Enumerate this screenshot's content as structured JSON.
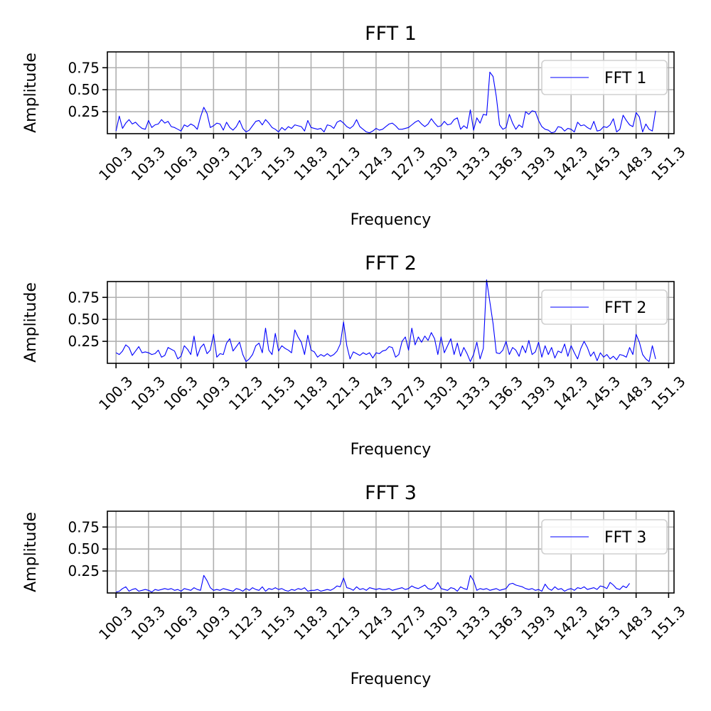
{
  "chart_data": [
    {
      "type": "line",
      "title": "FFT 1",
      "xlabel": "Frequency",
      "ylabel": "Amplitude",
      "xlim": [
        99.5,
        151.8
      ],
      "ylim": [
        0.0,
        0.93
      ],
      "xticks": [
        "100.3",
        "103.3",
        "106.3",
        "109.3",
        "112.3",
        "115.3",
        "118.3",
        "121.3",
        "124.3",
        "127.3",
        "130.3",
        "133.3",
        "136.3",
        "139.3",
        "142.3",
        "145.3",
        "148.3",
        "151.3"
      ],
      "yticks": [
        "0.25",
        "0.50",
        "0.75"
      ],
      "grid": true,
      "legend_position": "top-right",
      "color": "#0000ff",
      "series": [
        {
          "name": "FFT 1",
          "x_start": 100.3,
          "x_step": 0.3,
          "values": [
            0.03,
            0.2,
            0.06,
            0.12,
            0.16,
            0.11,
            0.13,
            0.09,
            0.06,
            0.05,
            0.15,
            0.07,
            0.1,
            0.11,
            0.16,
            0.12,
            0.14,
            0.08,
            0.07,
            0.05,
            0.03,
            0.1,
            0.08,
            0.11,
            0.09,
            0.05,
            0.19,
            0.3,
            0.23,
            0.07,
            0.09,
            0.12,
            0.11,
            0.04,
            0.13,
            0.07,
            0.04,
            0.08,
            0.15,
            0.06,
            0.02,
            0.04,
            0.09,
            0.14,
            0.15,
            0.1,
            0.16,
            0.12,
            0.07,
            0.05,
            0.02,
            0.07,
            0.04,
            0.08,
            0.06,
            0.1,
            0.09,
            0.08,
            0.03,
            0.15,
            0.07,
            0.06,
            0.05,
            0.06,
            0.02,
            0.1,
            0.09,
            0.06,
            0.13,
            0.15,
            0.12,
            0.08,
            0.06,
            0.09,
            0.16,
            0.08,
            0.05,
            0.02,
            0.01,
            0.03,
            0.06,
            0.04,
            0.05,
            0.08,
            0.11,
            0.12,
            0.09,
            0.05,
            0.05,
            0.06,
            0.07,
            0.1,
            0.13,
            0.15,
            0.11,
            0.08,
            0.11,
            0.17,
            0.12,
            0.08,
            0.09,
            0.14,
            0.1,
            0.11,
            0.16,
            0.18,
            0.05,
            0.09,
            0.06,
            0.27,
            0.04,
            0.18,
            0.12,
            0.22,
            0.21,
            0.7,
            0.65,
            0.42,
            0.1,
            0.05,
            0.07,
            0.22,
            0.12,
            0.05,
            0.1,
            0.07,
            0.25,
            0.22,
            0.26,
            0.25,
            0.15,
            0.08,
            0.05,
            0.04,
            0.01,
            0.02,
            0.08,
            0.07,
            0.03,
            0.06,
            0.05,
            0.02,
            0.13,
            0.09,
            0.1,
            0.07,
            0.05,
            0.14,
            0.03,
            0.04,
            0.08,
            0.07,
            0.1,
            0.17,
            0.02,
            0.05,
            0.21,
            0.15,
            0.1,
            0.08,
            0.24,
            0.19,
            0.02,
            0.11,
            0.05,
            0.03,
            0.26
          ]
        }
      ]
    },
    {
      "type": "line",
      "title": "FFT 2",
      "xlabel": "Frequency",
      "ylabel": "Amplitude",
      "xlim": [
        99.5,
        151.8
      ],
      "ylim": [
        0.0,
        0.93
      ],
      "xticks": [
        "100.3",
        "103.3",
        "106.3",
        "109.3",
        "112.3",
        "115.3",
        "118.3",
        "121.3",
        "124.3",
        "127.3",
        "130.3",
        "133.3",
        "136.3",
        "139.3",
        "142.3",
        "145.3",
        "148.3",
        "151.3"
      ],
      "yticks": [
        "0.25",
        "0.50",
        "0.75"
      ],
      "grid": true,
      "legend_position": "top-right",
      "color": "#0000ff",
      "series": [
        {
          "name": "FFT 2",
          "x_start": 100.3,
          "x_step": 0.3,
          "values": [
            0.12,
            0.1,
            0.14,
            0.21,
            0.18,
            0.09,
            0.14,
            0.19,
            0.12,
            0.13,
            0.12,
            0.1,
            0.11,
            0.15,
            0.07,
            0.09,
            0.18,
            0.16,
            0.14,
            0.05,
            0.08,
            0.2,
            0.16,
            0.1,
            0.31,
            0.08,
            0.18,
            0.22,
            0.11,
            0.15,
            0.33,
            0.07,
            0.11,
            0.1,
            0.23,
            0.28,
            0.14,
            0.19,
            0.24,
            0.1,
            0.02,
            0.05,
            0.1,
            0.2,
            0.23,
            0.12,
            0.4,
            0.15,
            0.1,
            0.34,
            0.14,
            0.2,
            0.17,
            0.15,
            0.12,
            0.38,
            0.3,
            0.24,
            0.1,
            0.32,
            0.15,
            0.13,
            0.07,
            0.1,
            0.08,
            0.11,
            0.08,
            0.1,
            0.14,
            0.22,
            0.47,
            0.2,
            0.05,
            0.13,
            0.11,
            0.09,
            0.12,
            0.1,
            0.12,
            0.06,
            0.12,
            0.11,
            0.14,
            0.15,
            0.19,
            0.18,
            0.07,
            0.1,
            0.25,
            0.3,
            0.15,
            0.4,
            0.21,
            0.3,
            0.24,
            0.31,
            0.26,
            0.35,
            0.28,
            0.1,
            0.3,
            0.12,
            0.2,
            0.28,
            0.1,
            0.23,
            0.08,
            0.18,
            0.11,
            0.02,
            0.1,
            0.24,
            0.05,
            0.17,
            0.95,
            0.7,
            0.45,
            0.12,
            0.11,
            0.15,
            0.25,
            0.1,
            0.18,
            0.15,
            0.08,
            0.2,
            0.12,
            0.26,
            0.1,
            0.13,
            0.24,
            0.07,
            0.2,
            0.1,
            0.18,
            0.06,
            0.14,
            0.12,
            0.22,
            0.08,
            0.2,
            0.12,
            0.05,
            0.17,
            0.25,
            0.18,
            0.08,
            0.13,
            0.03,
            0.12,
            0.07,
            0.1,
            0.05,
            0.08,
            0.04,
            0.1,
            0.09,
            0.07,
            0.18,
            0.1,
            0.33,
            0.24,
            0.1,
            0.05,
            0.02,
            0.2,
            0.05
          ]
        }
      ]
    },
    {
      "type": "line",
      "title": "FFT 3",
      "xlabel": "Frequency",
      "ylabel": "Amplitude",
      "xlim": [
        99.5,
        151.8
      ],
      "ylim": [
        0.0,
        0.93
      ],
      "xticks": [
        "100.3",
        "103.3",
        "106.3",
        "109.3",
        "112.3",
        "115.3",
        "118.3",
        "121.3",
        "124.3",
        "127.3",
        "130.3",
        "133.3",
        "136.3",
        "139.3",
        "142.3",
        "145.3",
        "148.3",
        "151.3"
      ],
      "yticks": [
        "0.25",
        "0.50",
        "0.75"
      ],
      "grid": true,
      "legend_position": "top-right",
      "color": "#0000ff",
      "series": [
        {
          "name": "FFT 3",
          "x_start": 100.3,
          "x_step": 0.3,
          "values": [
            0.01,
            0.02,
            0.05,
            0.07,
            0.02,
            0.04,
            0.05,
            0.02,
            0.03,
            0.04,
            0.03,
            0.01,
            0.04,
            0.03,
            0.04,
            0.05,
            0.04,
            0.05,
            0.03,
            0.04,
            0.02,
            0.05,
            0.04,
            0.03,
            0.06,
            0.04,
            0.03,
            0.2,
            0.14,
            0.06,
            0.03,
            0.04,
            0.03,
            0.05,
            0.04,
            0.03,
            0.02,
            0.05,
            0.04,
            0.02,
            0.05,
            0.03,
            0.06,
            0.04,
            0.03,
            0.07,
            0.02,
            0.05,
            0.04,
            0.06,
            0.04,
            0.05,
            0.03,
            0.02,
            0.04,
            0.03,
            0.05,
            0.04,
            0.06,
            0.02,
            0.03,
            0.03,
            0.04,
            0.02,
            0.03,
            0.04,
            0.03,
            0.05,
            0.08,
            0.07,
            0.17,
            0.06,
            0.05,
            0.03,
            0.07,
            0.04,
            0.05,
            0.03,
            0.06,
            0.05,
            0.04,
            0.05,
            0.04,
            0.04,
            0.05,
            0.03,
            0.04,
            0.05,
            0.06,
            0.04,
            0.05,
            0.08,
            0.06,
            0.05,
            0.07,
            0.09,
            0.05,
            0.04,
            0.06,
            0.12,
            0.05,
            0.04,
            0.03,
            0.06,
            0.05,
            0.02,
            0.07,
            0.05,
            0.04,
            0.2,
            0.14,
            0.03,
            0.05,
            0.04,
            0.05,
            0.03,
            0.04,
            0.05,
            0.03,
            0.04,
            0.05,
            0.1,
            0.11,
            0.09,
            0.08,
            0.07,
            0.05,
            0.04,
            0.05,
            0.03,
            0.04,
            0.02,
            0.1,
            0.05,
            0.03,
            0.07,
            0.04,
            0.05,
            0.02,
            0.04,
            0.05,
            0.03,
            0.06,
            0.05,
            0.07,
            0.04,
            0.05,
            0.06,
            0.04,
            0.08,
            0.07,
            0.05,
            0.12,
            0.09,
            0.05,
            0.04,
            0.08,
            0.06,
            0.11
          ]
        }
      ]
    }
  ]
}
